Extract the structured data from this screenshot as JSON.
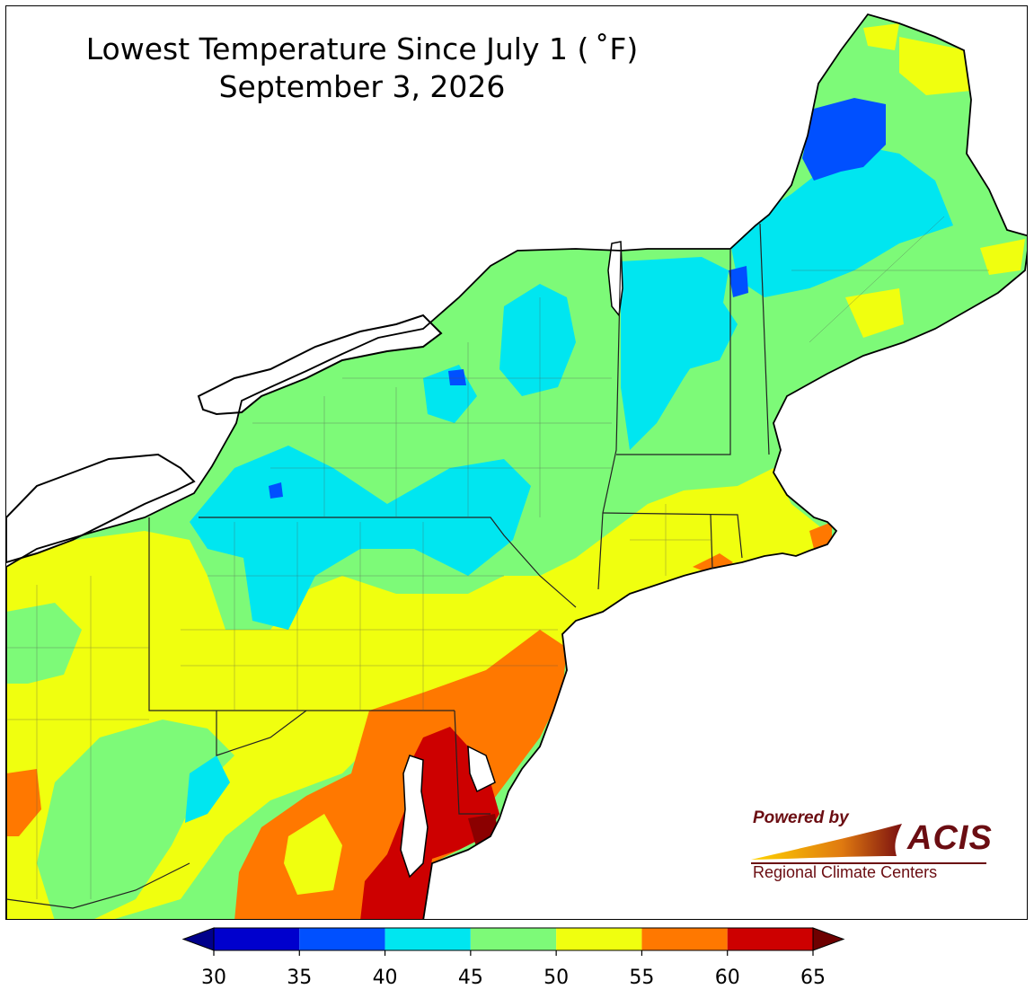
{
  "title": {
    "line1": "Lowest Temperature Since July 1 ( ˚F)",
    "line2": "September 3, 2026"
  },
  "map": {
    "variable": "Lowest temperature since July 1",
    "units": "°F",
    "date": "September 3, 2026",
    "region": "Northeast United States"
  },
  "legend": {
    "ticks": [
      "30",
      "35",
      "40",
      "45",
      "50",
      "55",
      "60",
      "65"
    ],
    "bins": [
      {
        "range": [
          30,
          35
        ],
        "color": "#0000cd"
      },
      {
        "range": [
          35,
          40
        ],
        "color": "#0050ff"
      },
      {
        "range": [
          40,
          45
        ],
        "color": "#00e6f0"
      },
      {
        "range": [
          45,
          50
        ],
        "color": "#7dfa78"
      },
      {
        "range": [
          50,
          55
        ],
        "color": "#f0ff0f"
      },
      {
        "range": [
          55,
          60
        ],
        "color": "#ff7800"
      },
      {
        "range": [
          60,
          65
        ],
        "color": "#cd0000"
      }
    ],
    "under_color": "#00008b",
    "over_color": "#6e0000"
  },
  "logo": {
    "powered_by": "Powered by",
    "name": "ACIS",
    "subtitle": "Regional Climate Centers"
  }
}
